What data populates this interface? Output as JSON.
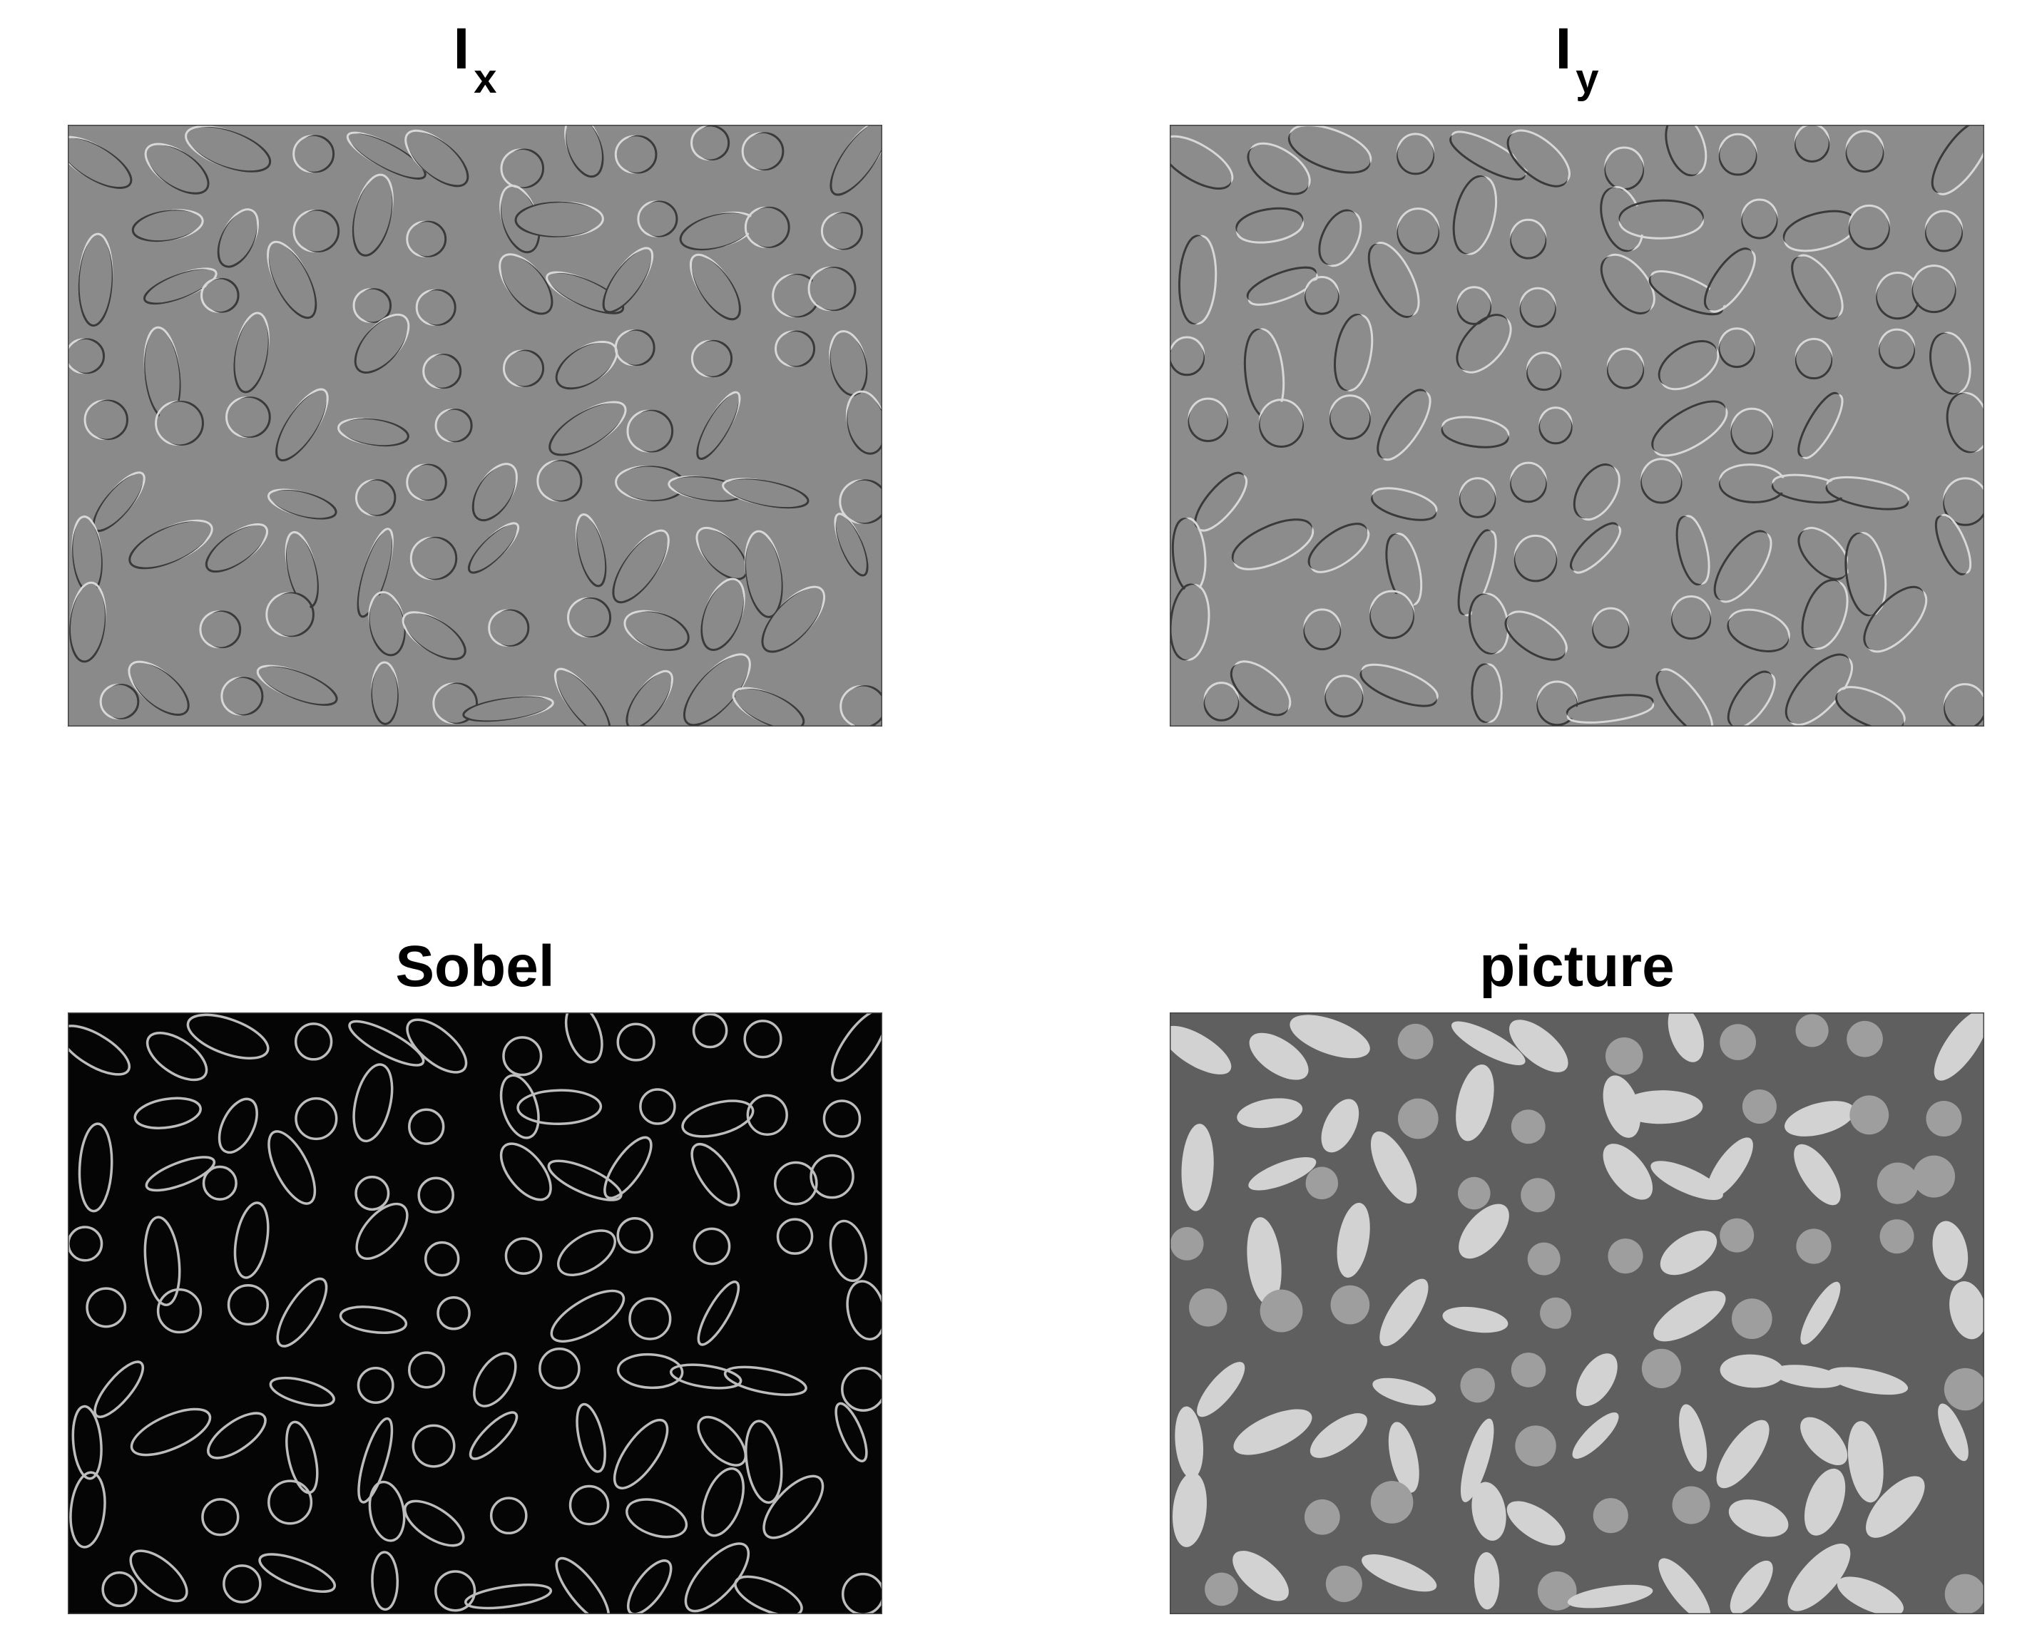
{
  "panels": [
    {
      "title_main": "I",
      "title_sub": "x",
      "style": "emboss-x",
      "bg": "#8a8a8a"
    },
    {
      "title_main": "I",
      "title_sub": "y",
      "style": "emboss-y",
      "bg": "#8c8c8c"
    },
    {
      "title_main": "Sobel",
      "title_sub": "",
      "style": "edges",
      "bg": "#050505"
    },
    {
      "title_main": "picture",
      "title_sub": "",
      "style": "photo",
      "bg": "#5f5f5f"
    }
  ]
}
